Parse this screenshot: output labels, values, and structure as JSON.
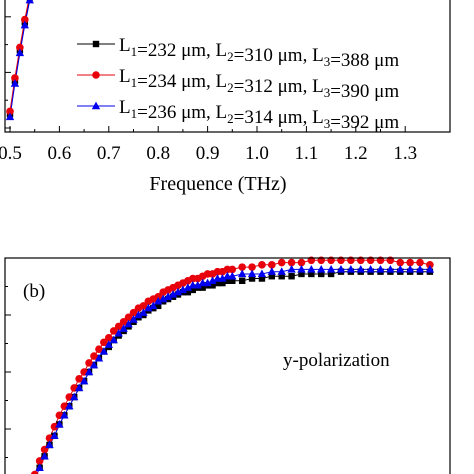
{
  "chart_data": [
    {
      "panel": "a",
      "type": "line",
      "xlabel": "Frequence (THz)",
      "xticks": [
        "0.5",
        "0.6",
        "0.7",
        "0.8",
        "0.9",
        "1.0",
        "1.1",
        "1.2",
        "1.3"
      ],
      "xlim": [
        0.5,
        1.35
      ],
      "ylim": [
        0,
        1
      ],
      "grid": false,
      "legend_placement": "bottom-right",
      "series": [
        {
          "name": "L1=232 μm, L2=310 μm, L3=388 μm",
          "color": "#000000",
          "marker": "square",
          "x": [
            0.5,
            0.51,
            0.52,
            0.53,
            0.54,
            0.55,
            0.56,
            0.57,
            0.58,
            0.59,
            0.6
          ],
          "y": [
            0.05,
            0.17,
            0.28,
            0.38,
            0.47,
            0.56,
            0.64,
            0.72,
            0.79,
            0.86,
            0.92
          ]
        },
        {
          "name": "L1=234 μm, L2=312 μm, L3=390 μm",
          "color": "#e8000b",
          "marker": "circle",
          "x": [
            0.5,
            0.51,
            0.52,
            0.53,
            0.54,
            0.55,
            0.56,
            0.57,
            0.58,
            0.59,
            0.6
          ],
          "y": [
            0.06,
            0.18,
            0.29,
            0.39,
            0.48,
            0.57,
            0.65,
            0.73,
            0.8,
            0.87,
            0.93
          ]
        },
        {
          "name": "L1=236 μm, L2=314 μm, L3=392 μm",
          "color": "#0000ee",
          "marker": "triangle",
          "x": [
            0.5,
            0.51,
            0.52,
            0.53,
            0.54,
            0.55,
            0.56,
            0.57,
            0.58,
            0.59,
            0.6
          ],
          "y": [
            0.04,
            0.16,
            0.27,
            0.37,
            0.46,
            0.55,
            0.63,
            0.71,
            0.78,
            0.85,
            0.91
          ]
        }
      ]
    },
    {
      "panel": "b",
      "type": "line",
      "panel_label": "(b)",
      "annotation": "y-polarization",
      "xlim": [
        0.5,
        1.35
      ],
      "ylim": [
        0,
        1
      ],
      "grid": false,
      "series": [
        {
          "name": "L1=232 μm, L2=310 μm, L3=388 μm",
          "color": "#000000",
          "marker": "square",
          "x": [
            0.55,
            0.56,
            0.57,
            0.58,
            0.59,
            0.6,
            0.61,
            0.62,
            0.63,
            0.64,
            0.65,
            0.66,
            0.67,
            0.68,
            0.69,
            0.7,
            0.71,
            0.72,
            0.73,
            0.74,
            0.75,
            0.76,
            0.77,
            0.78,
            0.79,
            0.8,
            0.81,
            0.82,
            0.83,
            0.84,
            0.85,
            0.86,
            0.87,
            0.88,
            0.89,
            0.9,
            0.91,
            0.92,
            0.93,
            0.94,
            0.95,
            0.97,
            0.99,
            1.01,
            1.03,
            1.05,
            1.07,
            1.09,
            1.11,
            1.13,
            1.15,
            1.17,
            1.19,
            1.21,
            1.23,
            1.25,
            1.27,
            1.29,
            1.31,
            1.33,
            1.35
          ],
          "y": [
            0.03,
            0.08,
            0.13,
            0.18,
            0.22,
            0.27,
            0.31,
            0.35,
            0.39,
            0.43,
            0.46,
            0.5,
            0.53,
            0.56,
            0.59,
            0.61,
            0.64,
            0.66,
            0.68,
            0.7,
            0.72,
            0.74,
            0.75,
            0.77,
            0.78,
            0.79,
            0.81,
            0.82,
            0.83,
            0.84,
            0.85,
            0.85,
            0.86,
            0.87,
            0.87,
            0.88,
            0.88,
            0.89,
            0.89,
            0.9,
            0.9,
            0.9,
            0.91,
            0.91,
            0.92,
            0.92,
            0.92,
            0.93,
            0.93,
            0.93,
            0.93,
            0.94,
            0.94,
            0.94,
            0.94,
            0.94,
            0.94,
            0.94,
            0.94,
            0.94,
            0.94
          ]
        },
        {
          "name": "L1=234 μm, L2=312 μm, L3=390 μm",
          "color": "#e8000b",
          "marker": "circle",
          "x": [
            0.55,
            0.56,
            0.57,
            0.58,
            0.59,
            0.6,
            0.61,
            0.62,
            0.63,
            0.64,
            0.65,
            0.66,
            0.67,
            0.68,
            0.69,
            0.7,
            0.71,
            0.72,
            0.73,
            0.74,
            0.75,
            0.76,
            0.77,
            0.78,
            0.79,
            0.8,
            0.81,
            0.82,
            0.83,
            0.84,
            0.85,
            0.86,
            0.87,
            0.88,
            0.89,
            0.9,
            0.91,
            0.92,
            0.93,
            0.94,
            0.95,
            0.97,
            0.99,
            1.01,
            1.03,
            1.05,
            1.07,
            1.09,
            1.11,
            1.13,
            1.15,
            1.17,
            1.19,
            1.21,
            1.23,
            1.25,
            1.27,
            1.29,
            1.31,
            1.33,
            1.35
          ],
          "y": [
            0.05,
            0.11,
            0.16,
            0.21,
            0.26,
            0.31,
            0.35,
            0.39,
            0.43,
            0.47,
            0.5,
            0.54,
            0.57,
            0.6,
            0.63,
            0.65,
            0.68,
            0.7,
            0.72,
            0.74,
            0.76,
            0.78,
            0.79,
            0.81,
            0.82,
            0.83,
            0.85,
            0.86,
            0.87,
            0.88,
            0.89,
            0.9,
            0.91,
            0.91,
            0.92,
            0.93,
            0.93,
            0.94,
            0.94,
            0.95,
            0.95,
            0.96,
            0.96,
            0.97,
            0.97,
            0.98,
            0.98,
            0.98,
            0.99,
            0.99,
            0.99,
            0.99,
            0.99,
            0.99,
            0.99,
            0.99,
            0.99,
            0.98,
            0.98,
            0.98,
            0.97
          ]
        },
        {
          "name": "L1=236 μm, L2=314 μm, L3=392 μm",
          "color": "#0000ee",
          "marker": "triangle",
          "x": [
            0.55,
            0.56,
            0.57,
            0.58,
            0.59,
            0.6,
            0.61,
            0.62,
            0.63,
            0.64,
            0.65,
            0.66,
            0.67,
            0.68,
            0.69,
            0.7,
            0.71,
            0.72,
            0.73,
            0.74,
            0.75,
            0.76,
            0.77,
            0.78,
            0.79,
            0.8,
            0.81,
            0.82,
            0.83,
            0.84,
            0.85,
            0.86,
            0.87,
            0.88,
            0.89,
            0.9,
            0.91,
            0.92,
            0.93,
            0.94,
            0.95,
            0.97,
            0.99,
            1.01,
            1.03,
            1.05,
            1.07,
            1.09,
            1.11,
            1.13,
            1.15,
            1.17,
            1.19,
            1.21,
            1.23,
            1.25,
            1.27,
            1.29,
            1.31,
            1.33,
            1.35
          ],
          "y": [
            0.03,
            0.08,
            0.13,
            0.18,
            0.22,
            0.27,
            0.31,
            0.35,
            0.39,
            0.43,
            0.46,
            0.5,
            0.53,
            0.56,
            0.59,
            0.62,
            0.64,
            0.67,
            0.69,
            0.71,
            0.73,
            0.75,
            0.76,
            0.78,
            0.79,
            0.81,
            0.82,
            0.83,
            0.84,
            0.85,
            0.86,
            0.87,
            0.88,
            0.88,
            0.89,
            0.89,
            0.9,
            0.91,
            0.91,
            0.92,
            0.92,
            0.93,
            0.93,
            0.93,
            0.94,
            0.94,
            0.95,
            0.95,
            0.95,
            0.95,
            0.95,
            0.95,
            0.95,
            0.95,
            0.95,
            0.95,
            0.95,
            0.95,
            0.95,
            0.95,
            0.95
          ]
        }
      ]
    }
  ]
}
